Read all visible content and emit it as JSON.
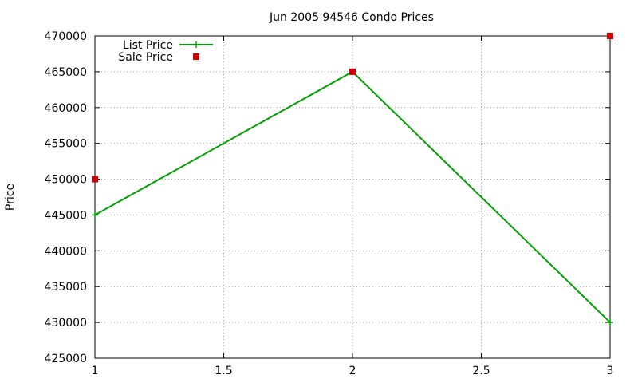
{
  "chart_data": {
    "type": "line",
    "title": "Jun 2005 94546 Condo Prices",
    "xlabel": "",
    "ylabel": "Price",
    "xlim": [
      1,
      3
    ],
    "ylim": [
      425000,
      470000
    ],
    "x_ticks": [
      1,
      1.5,
      2,
      2.5,
      3
    ],
    "x_tick_labels": [
      "1",
      "1.5",
      "2",
      "2.5",
      "3"
    ],
    "y_ticks": [
      425000,
      430000,
      435000,
      440000,
      445000,
      450000,
      455000,
      460000,
      465000,
      470000
    ],
    "y_tick_labels": [
      "425000",
      "430000",
      "435000",
      "440000",
      "445000",
      "450000",
      "455000",
      "460000",
      "465000",
      "470000"
    ],
    "grid": true,
    "legend_position": "top-left",
    "series": [
      {
        "name": "List Price",
        "style": "linespoints",
        "marker": "plus",
        "color": "#00a000",
        "x": [
          1,
          2,
          3
        ],
        "y": [
          445000,
          465000,
          430000
        ]
      },
      {
        "name": "Sale Price",
        "style": "points",
        "marker": "square",
        "color": "#cc0000",
        "x": [
          1,
          2,
          3
        ],
        "y": [
          450000,
          465000,
          470000
        ]
      }
    ]
  }
}
